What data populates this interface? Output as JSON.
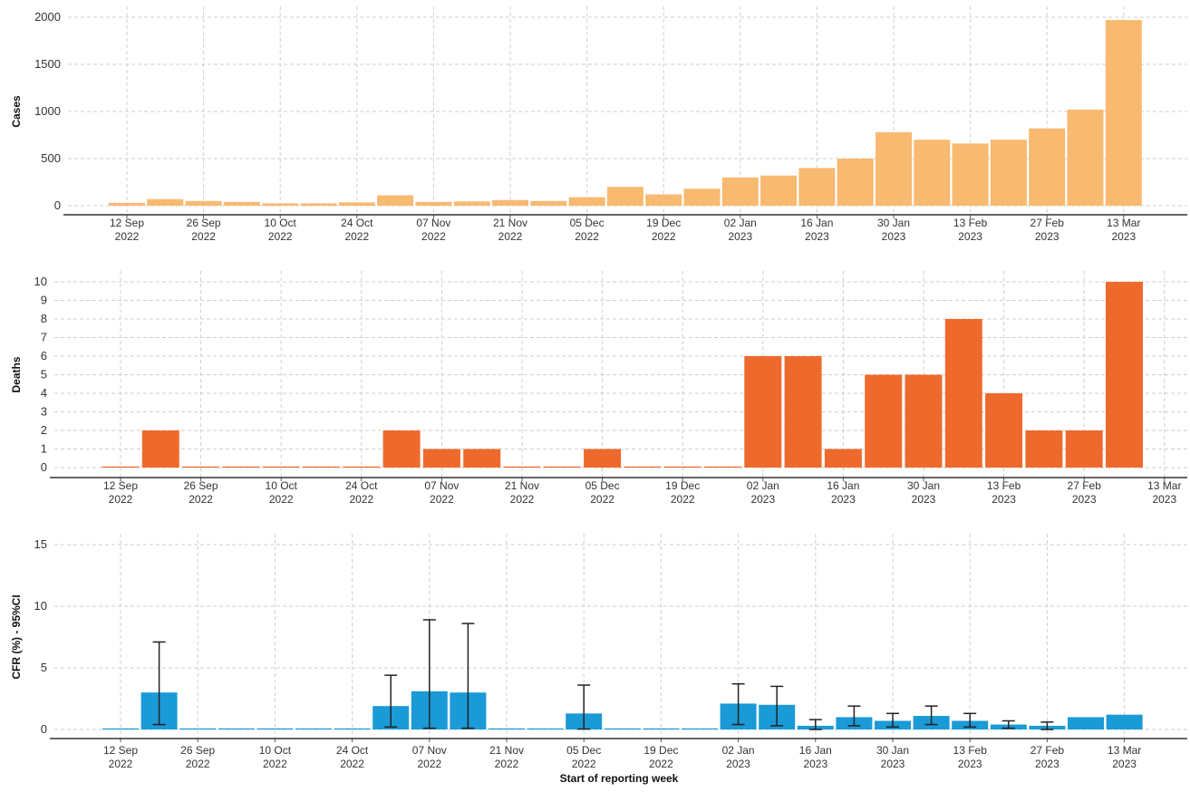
{
  "chart_data": [
    {
      "type": "bar",
      "ylabel": "Cases",
      "color": "#f8b970",
      "categories": [
        "12 Sep\n2022",
        null,
        "26 Sep\n2022",
        null,
        "10 Oct\n2022",
        null,
        "24 Oct\n2022",
        null,
        "07 Nov\n2022",
        null,
        "21 Nov\n2022",
        null,
        "05 Dec\n2022",
        null,
        "19 Dec\n2022",
        null,
        "02 Jan\n2023",
        null,
        "16 Jan\n2023",
        null,
        "30 Jan\n2023",
        null,
        "13 Feb\n2023",
        null,
        "27 Feb\n2023",
        null,
        "13 Mar\n2023"
      ],
      "values": [
        30,
        70,
        50,
        40,
        25,
        25,
        35,
        110,
        40,
        45,
        60,
        50,
        90,
        200,
        120,
        180,
        300,
        320,
        400,
        500,
        780,
        700,
        660,
        700,
        820,
        1020,
        1970
      ],
      "ylim": [
        0,
        2000
      ],
      "yticks": [
        0,
        500,
        1000,
        1500,
        2000
      ],
      "grid": true
    },
    {
      "type": "bar",
      "ylabel": "Deaths",
      "color": "#ee6a2c",
      "categories": [
        "12 Sep\n2022",
        null,
        "26 Sep\n2022",
        null,
        "10 Oct\n2022",
        null,
        "24 Oct\n2022",
        null,
        "07 Nov\n2022",
        null,
        "21 Nov\n2022",
        null,
        "05 Dec\n2022",
        null,
        "19 Dec\n2022",
        null,
        "02 Jan\n2023",
        null,
        "16 Jan\n2023",
        null,
        "30 Jan\n2023",
        null,
        "13 Feb\n2023",
        null,
        "27 Feb\n2023",
        null,
        "13 Mar\n2023"
      ],
      "values": [
        0,
        2,
        0,
        0,
        0,
        0,
        0,
        2,
        1,
        1,
        0,
        0,
        1,
        0,
        0,
        0,
        6,
        6,
        1,
        5,
        5,
        8,
        4,
        2,
        2,
        10,
        null
      ],
      "ylim": [
        0,
        10
      ],
      "yticks": [
        0,
        1,
        2,
        3,
        4,
        5,
        6,
        7,
        8,
        9,
        10
      ],
      "grid": true
    },
    {
      "type": "bar",
      "ylabel": "CFR (%) - 95%CI",
      "xlabel": "Start of reporting week",
      "color": "#1a9ad6",
      "categories": [
        "12 Sep\n2022",
        null,
        "26 Sep\n2022",
        null,
        "10 Oct\n2022",
        null,
        "24 Oct\n2022",
        null,
        "07 Nov\n2022",
        null,
        "21 Nov\n2022",
        null,
        "05 Dec\n2022",
        null,
        "19 Dec\n2022",
        null,
        "02 Jan\n2023",
        null,
        "16 Jan\n2023",
        null,
        "30 Jan\n2023",
        null,
        "13 Feb\n2023",
        null,
        "27 Feb\n2023",
        null,
        "13 Mar\n2023"
      ],
      "values": [
        0,
        3.0,
        0,
        0,
        0,
        0,
        0,
        1.9,
        3.1,
        3.0,
        0,
        0,
        1.3,
        0,
        0,
        0,
        2.1,
        2.0,
        0.3,
        1.0,
        0.7,
        1.1,
        0.7,
        0.4,
        0.3,
        1.0,
        1.2
      ],
      "ci_lower": [
        null,
        0.4,
        null,
        null,
        null,
        null,
        null,
        0.2,
        0.1,
        0.1,
        null,
        null,
        0.03,
        null,
        null,
        null,
        0.4,
        0.3,
        0.0,
        0.3,
        0.2,
        0.4,
        0.2,
        0.1,
        0.0,
        null,
        null
      ],
      "ci_upper": [
        null,
        7.1,
        null,
        null,
        null,
        null,
        null,
        4.4,
        8.9,
        8.6,
        null,
        null,
        3.6,
        null,
        null,
        null,
        3.7,
        3.5,
        0.8,
        1.9,
        1.3,
        1.9,
        1.3,
        0.7,
        0.6,
        null,
        null
      ],
      "ylim": [
        0,
        15
      ],
      "yticks": [
        0,
        5,
        10,
        15
      ],
      "grid": true
    }
  ]
}
